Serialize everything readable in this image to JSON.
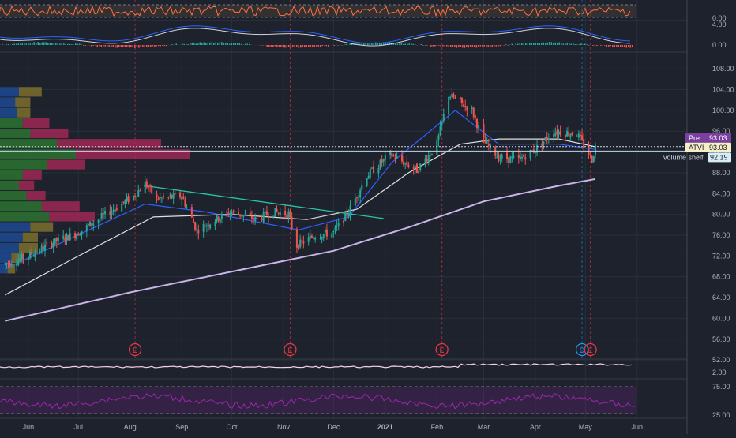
{
  "chart_data": {
    "type": "candlestick",
    "symbol": "ATVI",
    "colors": {
      "background": "#1e222d",
      "up": "#26a69a",
      "down": "#ef5350",
      "price_line": "#ffffff",
      "ma_fast": "#2962ff",
      "ma_slow": "#e0e0e0",
      "ma_long": "#c9b4e8",
      "trendline": "#26c6a8",
      "earnings": "#f23645",
      "dividend": "#2196f3",
      "rsi": "#9c27b0",
      "stoch": "#ff7043",
      "volume_profile_up": "#2e7d32",
      "volume_profile_down": "#b0285a",
      "volume_profile_va_up": "#1e4fa0",
      "volume_profile_va_down": "#8a7a2e"
    },
    "x_axis": {
      "labels": [
        "Jun",
        "Jul",
        "Aug",
        "Sep",
        "Oct",
        "Nov",
        "Dec",
        "2021",
        "Feb",
        "Mar",
        "Apr",
        "May",
        "Jun"
      ],
      "bold_label": "2021",
      "range_months": [
        "2020-05-15",
        "2021-06-30"
      ]
    },
    "price_axis": {
      "ticks": [
        "108.00",
        "104.00",
        "100.00",
        "96.00",
        "92.00",
        "88.00",
        "84.00",
        "80.00",
        "76.00",
        "72.00",
        "68.00",
        "64.00",
        "60.00",
        "56.00",
        "52.00"
      ],
      "ylim": [
        50.5,
        110
      ]
    },
    "stoch_axis": {
      "ticks": [
        "0.00"
      ]
    },
    "macd_axis": {
      "ticks": [
        "4.00",
        "0.00"
      ]
    },
    "obv_axis": {
      "ticks": [
        "2.00"
      ]
    },
    "rsi_axis": {
      "ticks": [
        "75.00",
        "25.00"
      ]
    },
    "price_path": [
      [
        "2020-05-18",
        70.5
      ],
      [
        "2020-06-01",
        72.0
      ],
      [
        "2020-06-15",
        74.5
      ],
      [
        "2020-07-01",
        76.5
      ],
      [
        "2020-07-15",
        79.5
      ],
      [
        "2020-08-03",
        83.5
      ],
      [
        "2020-08-10",
        86.0
      ],
      [
        "2020-08-17",
        83.0
      ],
      [
        "2020-09-01",
        83.5
      ],
      [
        "2020-09-10",
        77.0
      ],
      [
        "2020-09-21",
        79.0
      ],
      [
        "2020-10-01",
        80.5
      ],
      [
        "2020-10-15",
        79.0
      ],
      [
        "2020-10-26",
        80.5
      ],
      [
        "2020-11-04",
        80.0
      ],
      [
        "2020-11-09",
        74.0
      ],
      [
        "2020-11-20",
        76.0
      ],
      [
        "2020-12-01",
        76.5
      ],
      [
        "2020-12-10",
        80.5
      ],
      [
        "2020-12-21",
        87.5
      ],
      [
        "2021-01-04",
        91.5
      ],
      [
        "2021-01-20",
        88.5
      ],
      [
        "2021-02-01",
        93.5
      ],
      [
        "2021-02-08",
        103.0
      ],
      [
        "2021-02-22",
        100.0
      ],
      [
        "2021-03-01",
        94.0
      ],
      [
        "2021-03-10",
        91.0
      ],
      [
        "2021-03-22",
        90.5
      ],
      [
        "2021-04-01",
        92.5
      ],
      [
        "2021-04-12",
        96.0
      ],
      [
        "2021-04-26",
        95.5
      ],
      [
        "2021-05-05",
        90.5
      ],
      [
        "2021-05-07",
        93.0
      ]
    ],
    "moving_averages": [
      {
        "key": "ma_fast",
        "points": [
          [
            "2020-05-18",
            69.5
          ],
          [
            "2020-08-10",
            82.0
          ],
          [
            "2020-09-15",
            80.5
          ],
          [
            "2020-11-10",
            77.0
          ],
          [
            "2020-12-10",
            79.5
          ],
          [
            "2021-01-05",
            90.0
          ],
          [
            "2021-02-12",
            100.0
          ],
          [
            "2021-03-10",
            93.5
          ],
          [
            "2021-04-15",
            93.5
          ],
          [
            "2021-05-07",
            92.5
          ]
        ]
      },
      {
        "key": "ma_slow",
        "points": [
          [
            "2020-05-18",
            64.5
          ],
          [
            "2020-07-01",
            72.0
          ],
          [
            "2020-08-15",
            79.5
          ],
          [
            "2020-10-01",
            80.0
          ],
          [
            "2020-11-15",
            79.0
          ],
          [
            "2020-12-15",
            81.0
          ],
          [
            "2021-01-15",
            88.0
          ],
          [
            "2021-02-15",
            93.5
          ],
          [
            "2021-03-10",
            94.5
          ],
          [
            "2021-04-15",
            94.5
          ],
          [
            "2021-05-07",
            93.0
          ]
        ]
      },
      {
        "key": "ma_long",
        "points": [
          [
            "2020-05-18",
            59.5
          ],
          [
            "2020-08-01",
            65.0
          ],
          [
            "2020-10-01",
            69.0
          ],
          [
            "2020-12-01",
            73.0
          ],
          [
            "2021-01-15",
            77.5
          ],
          [
            "2021-03-01",
            82.5
          ],
          [
            "2021-04-15",
            85.5
          ],
          [
            "2021-05-07",
            86.8
          ]
        ]
      }
    ],
    "trendline": [
      [
        "2020-08-10",
        85.5
      ],
      [
        "2020-12-31",
        79.2
      ]
    ],
    "volume_shelf": {
      "label": "volume shelf",
      "value": "92.19",
      "price": 92.19
    },
    "price_markers": [
      {
        "label": "Pre",
        "value": "93.03",
        "price": 93.03,
        "color": "#7b3fa0"
      },
      {
        "label": "ATVI",
        "value": "93.03",
        "price": 93.03,
        "color": "#f5f0c8"
      }
    ],
    "events": [
      {
        "type": "E",
        "date": "2020-08-04"
      },
      {
        "type": "E",
        "date": "2020-11-05"
      },
      {
        "type": "E",
        "date": "2021-02-04"
      },
      {
        "type": "D",
        "date": "2021-04-29"
      },
      {
        "type": "E",
        "date": "2021-05-04"
      }
    ],
    "volume_profile": [
      {
        "price": 103.5,
        "up": 0.1,
        "down": 0.12,
        "value_area": true
      },
      {
        "price": 101.5,
        "up": 0.08,
        "down": 0.08,
        "value_area": true
      },
      {
        "price": 99.5,
        "up": 0.09,
        "down": 0.07,
        "value_area": true
      },
      {
        "price": 97.5,
        "up": 0.12,
        "down": 0.14,
        "value_area": false
      },
      {
        "price": 95.5,
        "up": 0.16,
        "down": 0.2,
        "value_area": false
      },
      {
        "price": 93.5,
        "up": 0.3,
        "down": 0.55,
        "value_area": false
      },
      {
        "price": 91.5,
        "up": 0.4,
        "down": 0.6,
        "value_area": false
      },
      {
        "price": 89.5,
        "up": 0.25,
        "down": 0.2,
        "value_area": false
      },
      {
        "price": 87.5,
        "up": 0.12,
        "down": 0.1,
        "value_area": false
      },
      {
        "price": 85.5,
        "up": 0.1,
        "down": 0.08,
        "value_area": false
      },
      {
        "price": 83.5,
        "up": 0.14,
        "down": 0.1,
        "value_area": false
      },
      {
        "price": 81.5,
        "up": 0.22,
        "down": 0.2,
        "value_area": false
      },
      {
        "price": 79.5,
        "up": 0.26,
        "down": 0.24,
        "value_area": false
      },
      {
        "price": 77.5,
        "up": 0.16,
        "down": 0.12,
        "value_area": true
      },
      {
        "price": 75.5,
        "up": 0.12,
        "down": 0.08,
        "value_area": true
      },
      {
        "price": 73.5,
        "up": 0.1,
        "down": 0.1,
        "value_area": true
      },
      {
        "price": 71.5,
        "up": 0.06,
        "down": 0.06,
        "value_area": true
      },
      {
        "price": 69.5,
        "up": 0.04,
        "down": 0.04,
        "value_area": true
      }
    ]
  }
}
